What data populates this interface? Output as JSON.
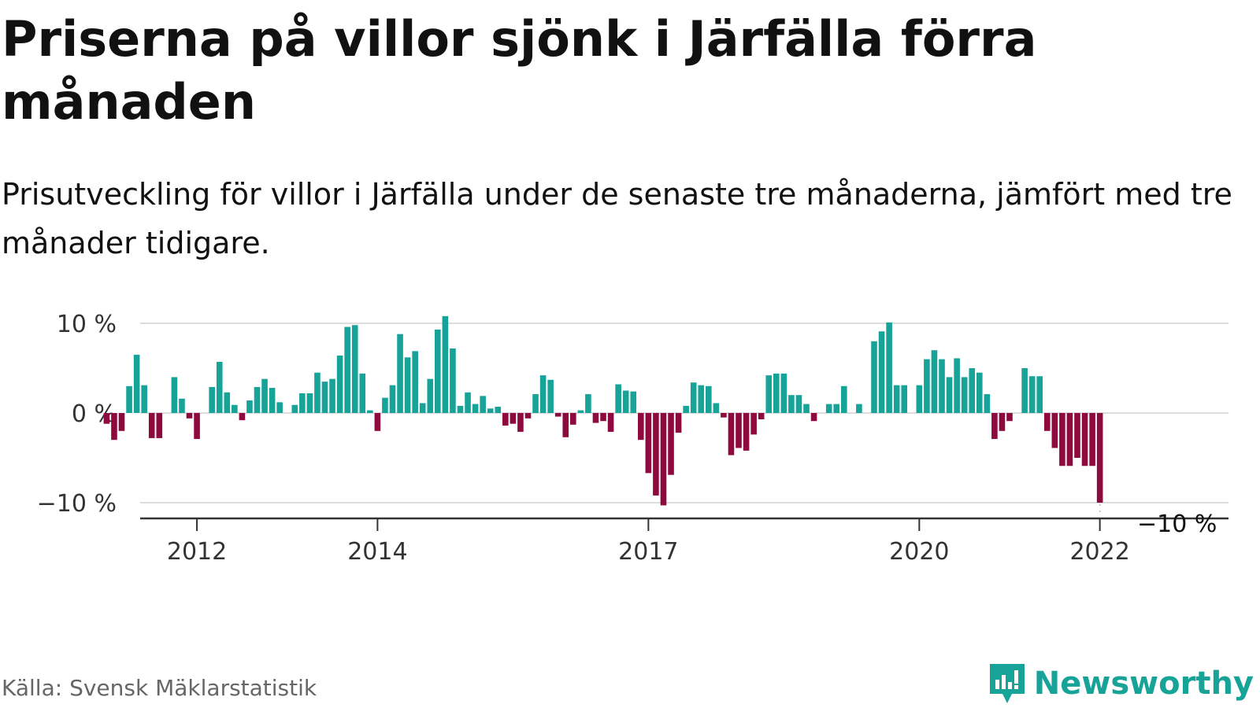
{
  "title": "Priserna på villor sjönk i Järfälla förra månaden",
  "subtitle": "Prisutveckling för villor i Järfälla under de senaste tre månaderna, jämfört med tre månader tidigare.",
  "source": "Källa: Svensk Mäklarstatistik",
  "brand": {
    "name": "Newsworthy",
    "icon": "newsworthy-logo-icon"
  },
  "colors": {
    "positive": "#17a398",
    "negative": "#8e0a3e",
    "grid": "#dddddd",
    "axis": "#333333",
    "brand": "#17a398"
  },
  "chart_data": {
    "type": "bar",
    "start_year": 2011,
    "start_month": 1,
    "ylim": [
      -11,
      11
    ],
    "yticks": [
      10,
      0,
      -10
    ],
    "ytick_labels": [
      "10 %",
      "0 %",
      "−10 %"
    ],
    "xticks": [
      {
        "year": 2012,
        "label": "2012"
      },
      {
        "year": 2014,
        "label": "2014"
      },
      {
        "year": 2017,
        "label": "2017"
      },
      {
        "year": 2020,
        "label": "2020"
      },
      {
        "year": 2022,
        "label": "2022"
      }
    ],
    "last_value_label": "−10 %",
    "grid": true,
    "values": [
      -1.2,
      -3,
      -2,
      3,
      6.5,
      3.1,
      -2.8,
      -2.8,
      null,
      4,
      1.6,
      -0.6,
      -2.9,
      null,
      2.9,
      5.7,
      2.3,
      0.9,
      -0.8,
      1.4,
      2.9,
      3.8,
      2.8,
      1.2,
      null,
      0.9,
      2.2,
      2.2,
      4.5,
      3.5,
      3.8,
      6.4,
      9.6,
      9.8,
      4.4,
      0.3,
      -2,
      1.7,
      3.1,
      8.8,
      6.2,
      6.9,
      1.1,
      3.8,
      9.3,
      10.8,
      7.2,
      0.8,
      2.3,
      1,
      1.9,
      0.5,
      0.7,
      -1.4,
      -1.2,
      -2.1,
      -0.6,
      2.1,
      4.2,
      3.7,
      -0.4,
      -2.7,
      -1.3,
      0.3,
      2.1,
      -1.1,
      -0.9,
      -2.1,
      3.2,
      2.5,
      2.4,
      -3,
      -6.7,
      -9.2,
      -10.3,
      -6.9,
      -2.2,
      0.8,
      3.4,
      3.1,
      3,
      1.1,
      -0.5,
      -4.7,
      -3.9,
      -4.2,
      -2.4,
      -0.7,
      4.2,
      4.4,
      4.4,
      2,
      2,
      1,
      -0.9,
      null,
      1,
      1,
      3,
      null,
      1,
      null,
      8,
      9.1,
      10.1,
      3.1,
      3.1,
      null,
      3.1,
      6,
      7,
      6,
      4,
      6.1,
      4,
      5,
      4.5,
      2.1,
      -2.9,
      -2,
      -0.9,
      null,
      5,
      4.1,
      4.1,
      -2,
      -3.9,
      -5.9,
      -5.9,
      -5,
      -5.9,
      -5.9,
      -10
    ]
  }
}
